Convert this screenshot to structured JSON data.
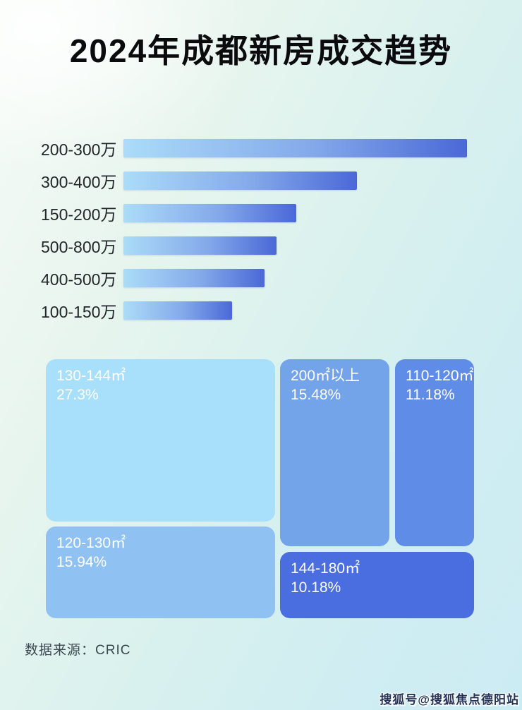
{
  "page": {
    "title": "2024年成都新房成交趋势",
    "source_note": "数据来源：CRIC",
    "watermark": "搜狐号@搜狐焦点德阳站",
    "background_tint_colors": [
      "#f6fbf7",
      "#ccecf3"
    ]
  },
  "chart_data": [
    {
      "type": "bar",
      "orientation": "horizontal",
      "title": "2024年成都新房成交趋势",
      "categories": [
        "200-300万",
        "300-400万",
        "150-200万",
        "500-800万",
        "400-500万",
        "100-150万"
      ],
      "values_pct_of_longest_bar": [
        100,
        68,
        50.3,
        44.6,
        41.1,
        31.6
      ],
      "values_unlabeled": true,
      "axis_shown": false,
      "grid": false,
      "bar_gradient_start": "#abdcf8",
      "bar_gradient_end": "#4b68d8",
      "label_color": "#23262b"
    },
    {
      "type": "treemap",
      "title": "",
      "tiles": [
        {
          "label": "130-144㎡",
          "value_pct": 27.3,
          "value_text": "27.3%",
          "color": "#a8e0fb"
        },
        {
          "label": "120-130㎡",
          "value_pct": 15.94,
          "value_text": "15.94%",
          "color": "#8fc2f2"
        },
        {
          "label": "200㎡以上",
          "value_pct": 15.48,
          "value_text": "15.48%",
          "color": "#73a3e9"
        },
        {
          "label": "110-120㎡",
          "value_pct": 11.18,
          "value_text": "11.18%",
          "color": "#5e8ce6"
        },
        {
          "label": "144-180㎡",
          "value_pct": 10.18,
          "value_text": "10.18%",
          "color": "#4a6ee0"
        }
      ],
      "text_color": "#ffffff",
      "legend_position": "none"
    }
  ]
}
